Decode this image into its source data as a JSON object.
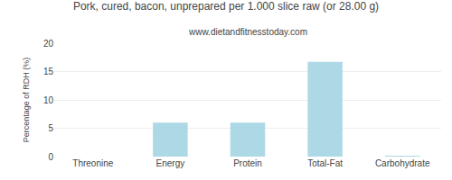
{
  "chart_data": {
    "type": "bar",
    "title": "Pork, cured, bacon, unprepared per 1.000 slice raw (or 28.00 g)",
    "subtitle": "www.dietandfitnesstoday.com",
    "categories": [
      "Threonine",
      "Energy",
      "Protein",
      "Total-Fat",
      "Carbohydrate"
    ],
    "values": [
      0.0,
      6.0,
      6.0,
      16.7,
      0.1
    ],
    "color": "#add8e6",
    "ylabel": "Percentage of RDH (%)",
    "ylim": [
      0,
      20
    ],
    "yticks": [
      0,
      5,
      10,
      15,
      20
    ],
    "grid": true
  }
}
